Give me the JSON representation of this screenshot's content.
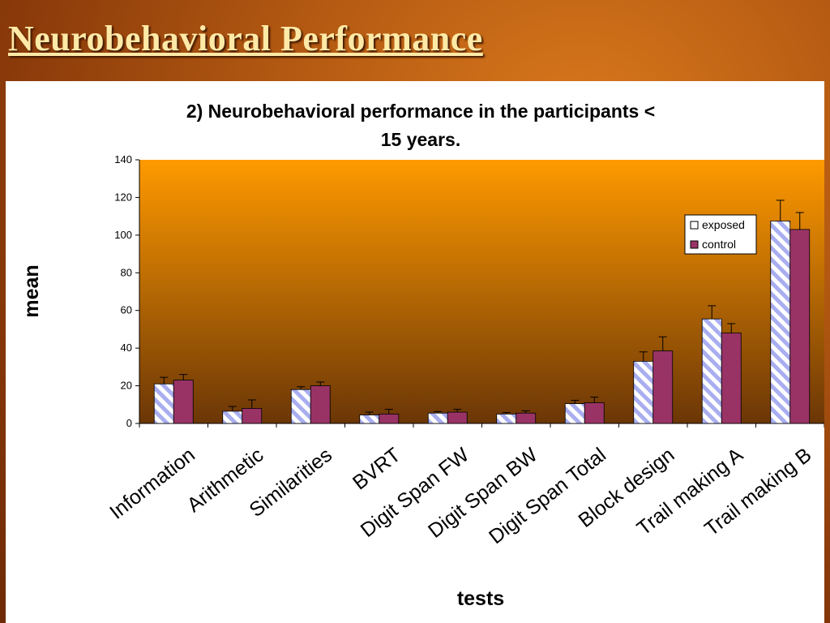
{
  "slide": {
    "title": "Neurobehavioral Performance"
  },
  "colors": {
    "exposed_fill": "#ffffff",
    "exposed_hatch": "#a9aef0",
    "control_fill": "#993366",
    "plot_top": "#ff9a00",
    "plot_bottom": "#6b3606"
  },
  "chart_data": {
    "type": "bar",
    "title": "2) Neurobehavioral performance in the participants <",
    "title_line2": "15 years.",
    "xlabel": "tests",
    "ylabel": "mean",
    "ylim": [
      0,
      140
    ],
    "yticks": [
      0,
      20,
      40,
      60,
      80,
      100,
      120,
      140
    ],
    "grid": false,
    "legend_position": "top-right",
    "categories": [
      "Information",
      "Arithmetic",
      "Similarities",
      "BVRT",
      "Digit Span FW",
      "Digit Span BW",
      "Digit Span Total",
      "Block design",
      "Trail making A",
      "Trail making B"
    ],
    "series": [
      {
        "name": "exposed",
        "values": [
          21,
          6.5,
          18,
          4.5,
          5.5,
          5,
          10.5,
          33,
          55.5,
          107.5
        ],
        "error": [
          3.5,
          2.5,
          1.5,
          1.5,
          0.8,
          0.8,
          1.8,
          5,
          7,
          11
        ]
      },
      {
        "name": "control",
        "values": [
          23,
          8,
          20,
          5,
          6,
          5.5,
          11,
          38.5,
          48,
          103
        ],
        "error": [
          3,
          4.5,
          2,
          2.5,
          1.5,
          1.2,
          3,
          7.5,
          5,
          9
        ]
      }
    ]
  }
}
